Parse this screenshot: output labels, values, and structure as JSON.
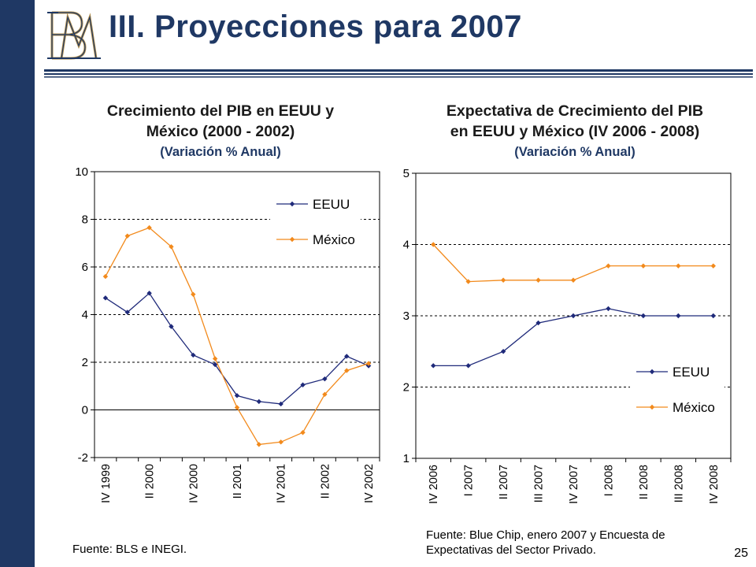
{
  "slide": {
    "title": "III. Proyecciones para 2007",
    "page_number": "25",
    "colors": {
      "navy": "#1f3864",
      "gold": "#b08d4a"
    }
  },
  "chart_data": [
    {
      "type": "line",
      "title_line1": "Crecimiento del PIB en EEUU y",
      "title_line2": "México (2000 - 2002)",
      "subtitle": "(Variación % Anual)",
      "source": "Fuente: BLS e INEGI.",
      "ylim": [
        -2,
        10
      ],
      "yticks": [
        -2,
        0,
        2,
        4,
        6,
        8,
        10
      ],
      "ygrid_dashed": [
        2,
        4,
        6,
        8
      ],
      "n_points": 13,
      "x_tick_labels": [
        "IV 1999",
        "II 2000",
        "IV 2000",
        "II 2001",
        "IV 2001",
        "II 2002",
        "IV 2002"
      ],
      "x_tick_label_indices": [
        0,
        2,
        4,
        6,
        8,
        10,
        12
      ],
      "legend_position": "top-right",
      "series": [
        {
          "name": "EEUU",
          "color": "#1f2a7a",
          "values": [
            4.7,
            4.1,
            4.9,
            3.5,
            2.3,
            1.9,
            0.6,
            0.35,
            0.25,
            1.05,
            1.3,
            2.25,
            1.85
          ]
        },
        {
          "name": "México",
          "color": "#f28a1c",
          "values": [
            5.6,
            7.3,
            7.65,
            6.85,
            4.85,
            2.15,
            0.1,
            -1.45,
            -1.35,
            -0.95,
            0.65,
            1.65,
            1.95
          ]
        }
      ]
    },
    {
      "type": "line",
      "title_line1": "Expectativa de Crecimiento del PIB",
      "title_line2": "en EEUU y México (IV 2006 - 2008)",
      "subtitle": "(Variación % Anual)",
      "source_line1": "Fuente: Blue Chip, enero 2007 y Encuesta de",
      "source_line2": "Expectativas del Sector Privado.",
      "ylim": [
        1,
        5
      ],
      "yticks": [
        1,
        2,
        3,
        4,
        5
      ],
      "ygrid_dashed": [
        2,
        3,
        4
      ],
      "n_points": 9,
      "x_tick_labels": [
        "IV 2006",
        "I 2007",
        "II 2007",
        "III 2007",
        "IV 2007",
        "I 2008",
        "II 2008",
        "III 2008",
        "IV 2008"
      ],
      "x_tick_label_indices": [
        0,
        1,
        2,
        3,
        4,
        5,
        6,
        7,
        8
      ],
      "legend_position": "bottom-right",
      "series": [
        {
          "name": "EEUU",
          "color": "#1f2a7a",
          "values": [
            2.3,
            2.3,
            2.5,
            2.9,
            3.0,
            3.1,
            3.0,
            3.0,
            3.0
          ]
        },
        {
          "name": "México",
          "color": "#f28a1c",
          "values": [
            4.0,
            3.48,
            3.5,
            3.5,
            3.5,
            3.7,
            3.7,
            3.7,
            3.7
          ]
        }
      ]
    }
  ]
}
